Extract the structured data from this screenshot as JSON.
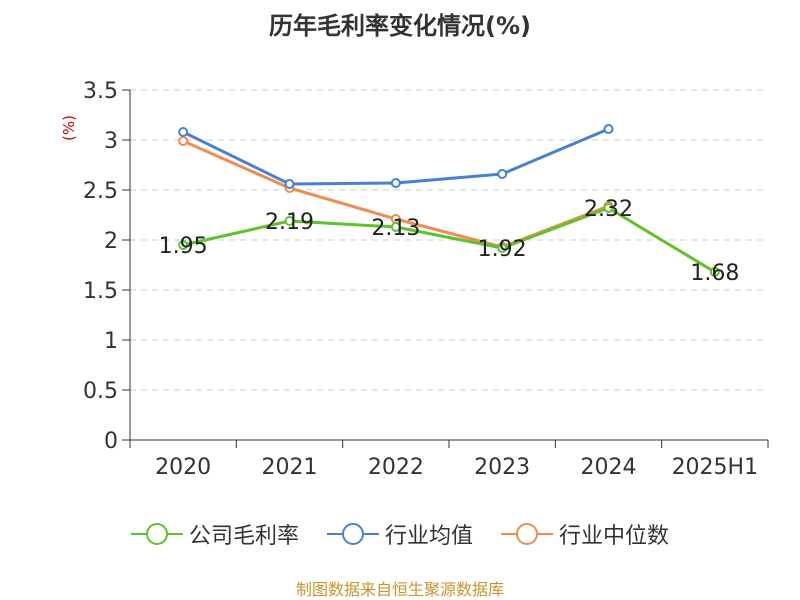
{
  "title": "历年毛利率变化情况(%)",
  "footer": "制图数据来自恒生聚源数据库",
  "chart_data": {
    "type": "line",
    "categories": [
      "2020",
      "2021",
      "2022",
      "2023",
      "2024",
      "2025H1"
    ],
    "ylabel": "(%)",
    "ylim": [
      0,
      3.5
    ],
    "yticks": [
      "0",
      "0.5",
      "1",
      "1.5",
      "2",
      "2.5",
      "3",
      "3.5"
    ],
    "grid": true,
    "legend_position": "bottom",
    "series": [
      {
        "name": "公司毛利率",
        "color": "#5ec22d",
        "values": [
          1.95,
          2.19,
          2.13,
          1.92,
          2.32,
          1.68
        ],
        "labels": [
          "1.95",
          "2.19",
          "2.13",
          "1.92",
          "2.32",
          "1.68"
        ]
      },
      {
        "name": "行业均值",
        "color": "#4a7fd6",
        "values": [
          3.08,
          2.56,
          2.57,
          2.66,
          3.11,
          null
        ]
      },
      {
        "name": "行业中位数",
        "color": "#f08c52",
        "values": [
          2.99,
          2.52,
          2.21,
          1.93,
          2.34,
          null
        ]
      }
    ]
  }
}
